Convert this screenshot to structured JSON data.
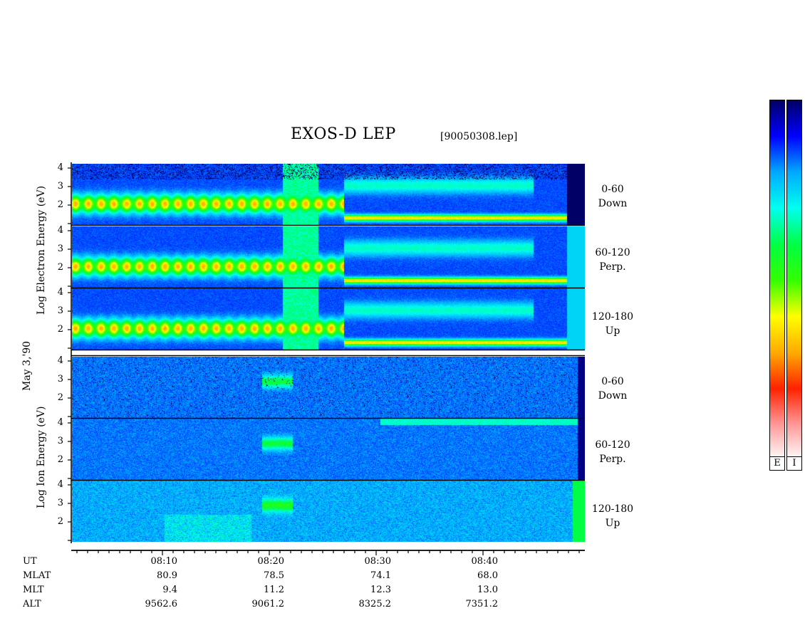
{
  "title": "EXOS-D LEP",
  "file_label": "[90050308.lep]",
  "date_label": "May  3,'90",
  "electron_axis_label": "Log  Electron  Energy (eV)",
  "ion_axis_label": "Log  Ion  Energy (eV)",
  "y_ticks": [
    "4",
    "3",
    "2"
  ],
  "panels": [
    {
      "group": "electron",
      "angle": "0-60",
      "direction": "Down"
    },
    {
      "group": "electron",
      "angle": "60-120",
      "direction": "Perp."
    },
    {
      "group": "electron",
      "angle": "120-180",
      "direction": "Up"
    },
    {
      "group": "ion",
      "angle": "0-60",
      "direction": "Down"
    },
    {
      "group": "ion",
      "angle": "60-120",
      "direction": "Perp."
    },
    {
      "group": "ion",
      "angle": "120-180",
      "direction": "Up"
    }
  ],
  "ephemeris": {
    "row_labels": [
      "UT",
      "MLAT",
      "MLT",
      "ALT"
    ],
    "columns": [
      {
        "UT": "08:10",
        "MLAT": "80.9",
        "MLT": "9.4",
        "ALT": "9562.6"
      },
      {
        "UT": "08:20",
        "MLAT": "78.5",
        "MLT": "11.2",
        "ALT": "9061.2"
      },
      {
        "UT": "08:30",
        "MLAT": "74.1",
        "MLT": "12.3",
        "ALT": "8325.2"
      },
      {
        "UT": "08:40",
        "MLAT": "68.0",
        "MLT": "13.0",
        "ALT": "7351.2"
      }
    ]
  },
  "colorbars": [
    {
      "label": "E"
    },
    {
      "label": "I"
    }
  ],
  "chart_data": {
    "type": "heatmap",
    "title": "EXOS-D LEP",
    "x": [
      "08:10",
      "08:20",
      "08:30",
      "08:40"
    ],
    "xlabel": "UT",
    "ylabel": "Log Energy (eV)",
    "ylim": [
      1,
      4
    ],
    "series": [
      {
        "name": "Electron 0-60 Down"
      },
      {
        "name": "Electron 60-120 Perp."
      },
      {
        "name": "Electron 120-180 Up"
      },
      {
        "name": "Ion 0-60 Down"
      },
      {
        "name": "Ion 60-120 Perp."
      },
      {
        "name": "Ion 120-180 Up"
      }
    ],
    "colormap": [
      "#000066",
      "#0000ff",
      "#00aaff",
      "#00ffee",
      "#00ff44",
      "#33ff00",
      "#ffff00",
      "#ffaa00",
      "#ff2200",
      "#ff9999",
      "#ffffff"
    ]
  }
}
